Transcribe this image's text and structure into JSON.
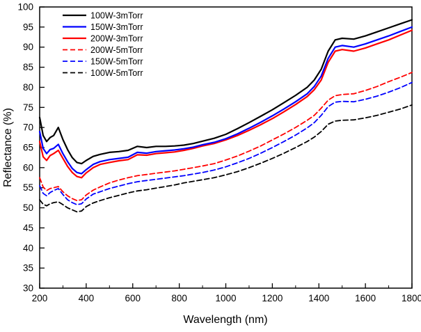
{
  "figure": {
    "background": "#ffffff",
    "axis_color": "#000000"
  },
  "chart_data": {
    "type": "line",
    "title": "",
    "xlabel": "Wavelength (nm)",
    "ylabel": "Reflectance (%)",
    "xlim": [
      200,
      1800
    ],
    "ylim": [
      30,
      100
    ],
    "x_ticks": [
      200,
      400,
      600,
      800,
      1000,
      1200,
      1400,
      1600,
      1800
    ],
    "y_ticks": [
      30,
      35,
      40,
      45,
      50,
      55,
      60,
      65,
      70,
      75,
      80,
      85,
      90,
      95,
      100
    ],
    "x_minor_step": 100,
    "grid": false,
    "legend_position": "top-left",
    "x": [
      200,
      215,
      230,
      245,
      260,
      280,
      300,
      320,
      340,
      360,
      380,
      400,
      430,
      460,
      500,
      540,
      580,
      620,
      660,
      700,
      740,
      780,
      820,
      860,
      900,
      950,
      1000,
      1050,
      1100,
      1150,
      1200,
      1250,
      1300,
      1350,
      1380,
      1410,
      1440,
      1470,
      1500,
      1550,
      1600,
      1650,
      1700,
      1750,
      1800
    ],
    "series": [
      {
        "name": "100W-3mTorr",
        "color": "#000000",
        "style": "solid",
        "values": [
          72.5,
          68.0,
          66.5,
          67.5,
          68.0,
          70.0,
          67.0,
          64.5,
          62.5,
          61.3,
          61.0,
          61.8,
          62.8,
          63.3,
          63.8,
          64.0,
          64.3,
          65.3,
          65.0,
          65.3,
          65.3,
          65.4,
          65.6,
          66.0,
          66.6,
          67.3,
          68.3,
          69.7,
          71.2,
          72.8,
          74.4,
          76.2,
          78.0,
          80.0,
          81.8,
          84.5,
          89.0,
          91.8,
          92.2,
          92.0,
          92.8,
          93.8,
          94.8,
          95.8,
          96.8
        ]
      },
      {
        "name": "150W-3mTorr",
        "color": "#0000ff",
        "style": "solid",
        "values": [
          69.0,
          64.8,
          63.5,
          64.5,
          64.8,
          65.8,
          63.5,
          61.5,
          59.8,
          58.8,
          58.5,
          59.5,
          60.8,
          61.5,
          62.0,
          62.3,
          62.6,
          63.8,
          63.6,
          64.0,
          64.2,
          64.4,
          64.7,
          65.1,
          65.7,
          66.3,
          67.2,
          68.4,
          69.8,
          71.3,
          72.9,
          74.6,
          76.4,
          78.4,
          80.2,
          82.8,
          87.2,
          90.0,
          90.4,
          90.0,
          90.8,
          91.8,
          92.8,
          93.9,
          95.0
        ]
      },
      {
        "name": "200W-3mTorr",
        "color": "#ff0000",
        "style": "solid",
        "values": [
          66.5,
          62.7,
          61.8,
          63.0,
          63.5,
          64.3,
          62.3,
          60.3,
          58.8,
          57.8,
          57.5,
          58.7,
          60.0,
          60.8,
          61.3,
          61.7,
          62.0,
          63.2,
          63.1,
          63.5,
          63.7,
          63.9,
          64.3,
          64.8,
          65.4,
          66.0,
          66.9,
          68.0,
          69.3,
          70.7,
          72.2,
          73.9,
          75.7,
          77.7,
          79.4,
          81.8,
          86.2,
          89.0,
          89.4,
          89.0,
          89.8,
          90.8,
          91.8,
          93.0,
          94.2
        ]
      },
      {
        "name": "200W-5mTorr",
        "color": "#ff0000",
        "style": "dashed",
        "values": [
          57.5,
          55.2,
          54.3,
          54.8,
          55.0,
          55.3,
          54.0,
          53.0,
          52.3,
          51.8,
          52.0,
          53.2,
          54.4,
          55.2,
          56.2,
          56.9,
          57.5,
          58.0,
          58.3,
          58.6,
          58.9,
          59.2,
          59.6,
          60.0,
          60.4,
          61.0,
          61.9,
          62.9,
          64.1,
          65.4,
          66.9,
          68.4,
          70.0,
          71.8,
          73.0,
          74.8,
          76.8,
          77.9,
          78.2,
          78.4,
          79.2,
          80.2,
          81.4,
          82.5,
          83.7
        ]
      },
      {
        "name": "150W-5mTorr",
        "color": "#0000ff",
        "style": "dashed",
        "values": [
          55.5,
          53.6,
          53.0,
          53.8,
          54.3,
          54.8,
          53.3,
          52.0,
          51.3,
          50.8,
          51.0,
          52.2,
          53.4,
          54.0,
          54.8,
          55.4,
          56.0,
          56.5,
          56.8,
          57.1,
          57.4,
          57.7,
          58.0,
          58.4,
          58.8,
          59.4,
          60.2,
          61.2,
          62.3,
          63.6,
          65.0,
          66.5,
          68.1,
          69.9,
          71.2,
          73.0,
          75.2,
          76.3,
          76.5,
          76.4,
          77.0,
          77.8,
          78.8,
          79.9,
          81.2
        ]
      },
      {
        "name": "100W-5mTorr",
        "color": "#000000",
        "style": "dashed",
        "values": [
          52.0,
          50.9,
          50.5,
          51.0,
          51.3,
          51.5,
          50.8,
          50.0,
          49.5,
          49.0,
          49.2,
          50.3,
          51.2,
          51.8,
          52.5,
          53.1,
          53.7,
          54.2,
          54.5,
          54.9,
          55.3,
          55.7,
          56.2,
          56.6,
          57.0,
          57.5,
          58.2,
          59.0,
          60.0,
          61.1,
          62.3,
          63.6,
          65.0,
          66.5,
          67.6,
          69.0,
          70.8,
          71.6,
          71.8,
          71.9,
          72.4,
          73.0,
          73.8,
          74.6,
          75.6
        ]
      }
    ]
  }
}
